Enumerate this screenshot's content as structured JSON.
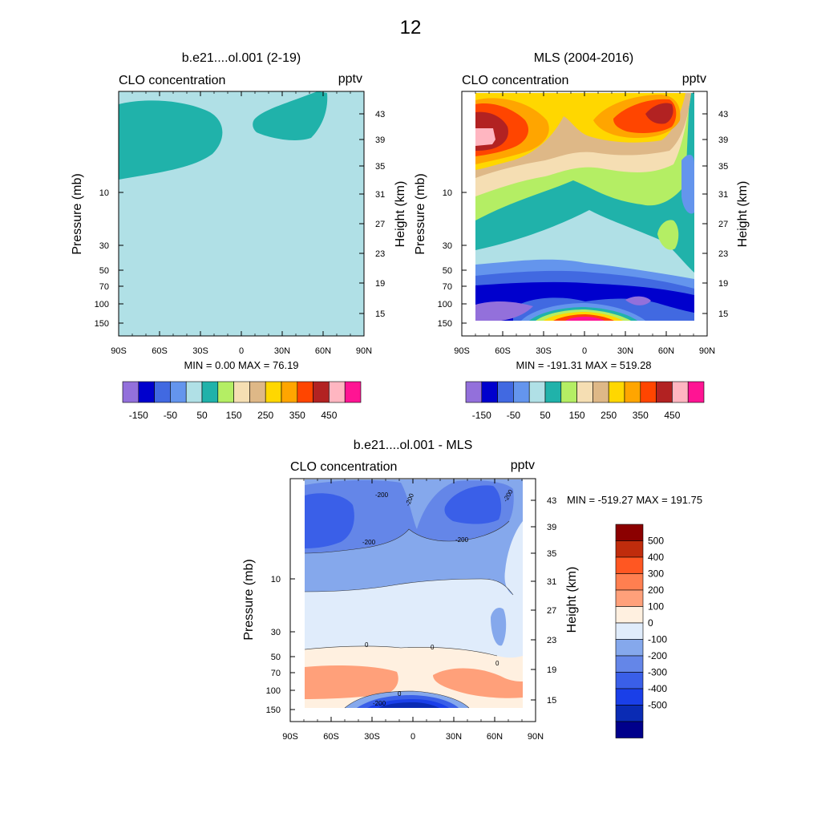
{
  "page_title": "12",
  "chart_data": [
    {
      "type": "contour",
      "title": "b.e21....ol.001 (2-19)",
      "left_string": "CLO concentration",
      "right_string": "pptv",
      "xlabel": "",
      "ylabel": "Pressure (mb)",
      "ylabel_right": "Height (km)",
      "x_ticks": [
        "90S",
        "60S",
        "30S",
        "0",
        "30N",
        "60N",
        "90N"
      ],
      "xlim": [
        -90,
        90
      ],
      "y_ticks": [
        "10",
        "30",
        "50",
        "70",
        "100",
        "150"
      ],
      "y_ticks_right": [
        "43",
        "39",
        "35",
        "31",
        "27",
        "23",
        "19",
        "15"
      ],
      "min_text": "MIN =   0.00  MAX = 76.19",
      "min": 0.0,
      "max": 76.19,
      "fill_regions": [
        {
          "level": "50 to 100",
          "color": "#20b2aa",
          "where": "upper-left and upper-right-center, above ~8 mb"
        },
        {
          "level": "0 to 50",
          "color": "#b0e0e6",
          "where": "rest of domain"
        }
      ]
    },
    {
      "type": "contour",
      "title": "MLS (2004-2016)",
      "left_string": "CLO concentration",
      "right_string": "pptv",
      "xlabel": "",
      "ylabel": "Pressure (mb)",
      "ylabel_right": "Height (km)",
      "x_ticks": [
        "90S",
        "60S",
        "30S",
        "0",
        "30N",
        "60N",
        "90N"
      ],
      "xlim": [
        -90,
        90
      ],
      "y_ticks": [
        "10",
        "30",
        "50",
        "70",
        "100",
        "150"
      ],
      "y_ticks_right": [
        "43",
        "39",
        "35",
        "31",
        "27",
        "23",
        "19",
        "15"
      ],
      "min_text": "MIN = -191.31  MAX = 519.28",
      "min": -191.31,
      "max": 519.28
    },
    {
      "type": "contour",
      "title": "b.e21....ol.001 - MLS",
      "left_string": "CLO concentration",
      "right_string": "pptv",
      "xlabel": "",
      "ylabel": "Pressure (mb)",
      "ylabel_right": "Height (km)",
      "x_ticks": [
        "90S",
        "60S",
        "30S",
        "0",
        "30N",
        "60N",
        "90N"
      ],
      "xlim": [
        -90,
        90
      ],
      "y_ticks": [
        "10",
        "30",
        "50",
        "70",
        "100",
        "150"
      ],
      "y_ticks_right": [
        "43",
        "39",
        "35",
        "31",
        "27",
        "23",
        "19",
        "15"
      ],
      "min_text": "MIN = -519.27  MAX = 191.75",
      "min": -519.27,
      "max": 191.75,
      "contour_labels": [
        "-200",
        "-200",
        "-200",
        "-200",
        "-200",
        "0",
        "0",
        "0",
        "0",
        "-200"
      ]
    }
  ],
  "colorbars": {
    "abs": {
      "colors": [
        "#9370db",
        "#0000cd",
        "#4169e1",
        "#6495ed",
        "#b0e0e6",
        "#20b2aa",
        "#b4ee64",
        "#f5deb3",
        "#deb887",
        "#ffd700",
        "#ffa500",
        "#ff4500",
        "#b22222",
        "#ffb6c1",
        "#ff1493"
      ],
      "labels": [
        "-150",
        "-50",
        "50",
        "150",
        "250",
        "350",
        "450"
      ]
    },
    "diff": {
      "colors": [
        "#8b0000",
        "#c02c0c",
        "#ff5722",
        "#ff7f50",
        "#ffa07a",
        "#fff0e0",
        "#e0ecfb",
        "#85a8ec",
        "#6486e8",
        "#3a5fe8",
        "#1a3fe8",
        "#0a2bb4",
        "#00008b"
      ],
      "labels": [
        "500",
        "400",
        "300",
        "200",
        "100",
        "0",
        "-100",
        "-200",
        "-300",
        "-400",
        "-500"
      ]
    }
  },
  "colors": {
    "c0_200": "#b0e0e6",
    "c50_100": "#20b2aa"
  }
}
